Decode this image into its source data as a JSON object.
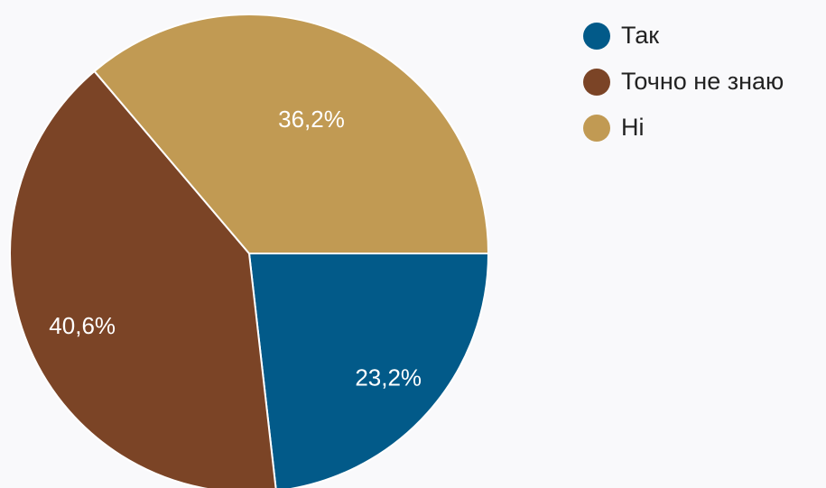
{
  "chart_data": {
    "type": "pie",
    "categories": [
      "Так",
      "Точно не знаю",
      "Ні"
    ],
    "values": [
      23.2,
      40.6,
      36.2
    ],
    "data_labels": [
      "23,2%",
      "40,6%",
      "36,2%"
    ],
    "colors": [
      "#025a89",
      "#7b4426",
      "#c19a53"
    ],
    "legend_position": "top-right",
    "start_angle_deg": 0,
    "direction": "clockwise"
  }
}
